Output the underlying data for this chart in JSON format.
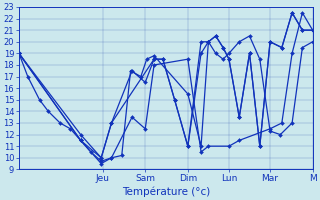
{
  "xlabel": "Température (°c)",
  "ylim": [
    9,
    23
  ],
  "yticks": [
    9,
    10,
    11,
    12,
    13,
    14,
    15,
    16,
    17,
    18,
    19,
    20,
    21,
    22,
    23
  ],
  "background_color": "#cce8ed",
  "grid_color": "#4466bb",
  "line_color": "#1133bb",
  "markersize": 2.0,
  "day_x": [
    0.285,
    0.43,
    0.575,
    0.715,
    0.855,
    1.0
  ],
  "day_labels": [
    "Jeu",
    "Sam",
    "Dim",
    "Lun",
    "Mar",
    "M"
  ],
  "lines": [
    {
      "x": [
        0.0,
        0.03,
        0.07,
        0.1,
        0.14,
        0.175,
        0.21,
        0.245,
        0.28,
        0.315,
        0.35,
        0.38,
        0.415,
        0.435,
        0.46,
        0.575,
        0.62,
        0.645,
        0.67,
        0.695,
        0.715,
        0.75,
        0.785,
        0.82,
        0.855,
        0.89,
        0.93,
        0.965,
        1.0
      ],
      "y": [
        19,
        17,
        15,
        14,
        13,
        12.5,
        11.5,
        10.5,
        9.7,
        10.0,
        10.2,
        17.5,
        17,
        18.5,
        18.8,
        15.5,
        11.0,
        20,
        19,
        18.5,
        19,
        20,
        20.5,
        18.5,
        12.3,
        12,
        13,
        19.5,
        20
      ]
    },
    {
      "x": [
        0.0,
        0.21,
        0.28,
        0.315,
        0.385,
        0.43,
        0.46,
        0.575,
        0.62,
        0.645,
        0.715,
        0.75,
        0.855,
        0.895,
        0.93,
        0.965,
        1.0
      ],
      "y": [
        19,
        11.5,
        9.5,
        10,
        13.5,
        12.5,
        18,
        18.5,
        10.5,
        11,
        11.0,
        11.5,
        12.5,
        13,
        19,
        22.5,
        21
      ]
    },
    {
      "x": [
        0.0,
        0.21,
        0.28,
        0.315,
        0.385,
        0.43,
        0.46,
        0.49,
        0.53,
        0.575,
        0.62,
        0.645,
        0.67,
        0.695,
        0.715,
        0.75,
        0.785,
        0.82,
        0.855,
        0.895,
        0.93,
        0.965,
        1.0
      ],
      "y": [
        19,
        12,
        10,
        13,
        17.5,
        16.5,
        18.5,
        18.5,
        15,
        11,
        19,
        20,
        20.5,
        19.5,
        18.5,
        13.5,
        19,
        11,
        20,
        19.5,
        22.5,
        21,
        21
      ]
    },
    {
      "x": [
        0.0,
        0.21,
        0.28,
        0.315,
        0.46,
        0.49,
        0.53,
        0.575,
        0.62,
        0.645,
        0.67,
        0.695,
        0.715,
        0.75,
        0.785,
        0.82,
        0.855,
        0.895,
        0.93,
        0.965,
        1.0
      ],
      "y": [
        19,
        11.5,
        10,
        13,
        18.5,
        18.5,
        15,
        11,
        20,
        20,
        20.5,
        19.5,
        18.5,
        13.5,
        19,
        11,
        20,
        19.5,
        22.5,
        21,
        21
      ]
    }
  ]
}
